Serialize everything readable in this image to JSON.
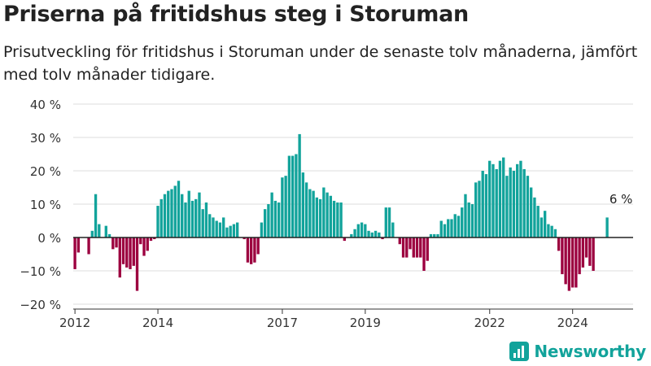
{
  "header": {
    "title": "Priserna på fritidshus steg i Storuman",
    "subtitle": "Prisutveckling för fritidshus i Storuman under de senaste tolv månaderna, jämfört med tolv månader tidigare."
  },
  "brand": {
    "name": "Newsworthy",
    "icon": "newsworthy-logo-icon",
    "color": "#12a39b"
  },
  "chart_data": {
    "type": "bar",
    "x_start": "2012-01",
    "x_end": "2025-06",
    "ylim": [
      -20,
      40
    ],
    "yticks": [
      40,
      30,
      20,
      10,
      0,
      -10,
      -20
    ],
    "ytick_labels": [
      "40 %",
      "30 %",
      "20 %",
      "10 %",
      "0 %",
      "−10 %",
      "−20 %"
    ],
    "xticks": [
      {
        "date": "2012-01",
        "label": "2012"
      },
      {
        "date": "2014-01",
        "label": "2014"
      },
      {
        "date": "2017-01",
        "label": "2017"
      },
      {
        "date": "2019-01",
        "label": "2019"
      },
      {
        "date": "2022-01",
        "label": "2022"
      },
      {
        "date": "2024-01",
        "label": "2024"
      }
    ],
    "grid": true,
    "positive_color": "#12a39b",
    "negative_color": "#9c003f",
    "annotation": {
      "text": "6 %",
      "date": "2025-03"
    },
    "values": [
      -9.5,
      -4.5,
      0,
      0,
      -5,
      2,
      13,
      4,
      0,
      3.5,
      1,
      -3.5,
      -3,
      -12,
      -8,
      -9,
      -9.5,
      -8.5,
      -16,
      -2,
      -5.5,
      -4,
      -1,
      -0.5,
      9.5,
      11.5,
      13,
      14,
      14.5,
      15.5,
      17,
      13,
      10.5,
      14,
      11,
      11.5,
      13.5,
      8.5,
      10.5,
      7,
      6,
      5,
      4.5,
      6,
      3,
      3.5,
      4,
      4.5,
      0,
      -0.5,
      -7.5,
      -8,
      -7.5,
      -5,
      4.5,
      8.5,
      10,
      13.5,
      11,
      10.5,
      18,
      18.5,
      24.5,
      24.5,
      25,
      31,
      19.5,
      16.5,
      14.5,
      14,
      12,
      11.5,
      15,
      13.5,
      12.5,
      11,
      10.5,
      10.5,
      -1,
      0,
      1,
      2.5,
      4,
      4.5,
      4,
      2,
      1.5,
      2,
      1.5,
      -0.5,
      9,
      9,
      4.5,
      0,
      -2,
      -6,
      -6,
      -3.5,
      -6,
      -6,
      -6,
      -10,
      -7,
      1,
      1,
      1,
      5,
      4,
      5.5,
      5.5,
      7,
      6.5,
      9,
      13,
      10.5,
      10,
      16.5,
      17,
      20,
      19,
      23,
      22,
      20.5,
      23,
      24,
      18.5,
      21,
      20,
      22,
      23,
      20.5,
      18.5,
      15,
      12,
      9.5,
      6,
      8,
      4,
      3.5,
      2.5,
      -4,
      -11,
      -14,
      -16,
      -15,
      -15,
      -11,
      -9,
      -6,
      -8.5,
      -10,
      0,
      0,
      0,
      6,
      0
    ]
  }
}
